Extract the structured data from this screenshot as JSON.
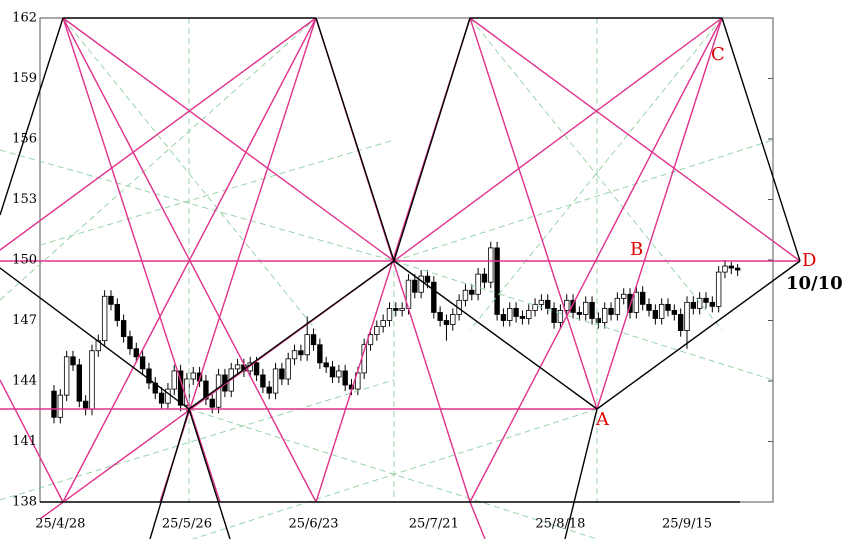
{
  "chart_data": {
    "type": "candlestick",
    "categories": [
      null,
      "25/4/28",
      null,
      null,
      null,
      null,
      null,
      null,
      null,
      null,
      null,
      null,
      null,
      null,
      null,
      null,
      null,
      null,
      null,
      null,
      null,
      "25/5/26",
      null,
      null,
      null,
      null,
      null,
      null,
      null,
      null,
      null,
      null,
      null,
      null,
      null,
      null,
      null,
      null,
      null,
      null,
      null,
      "25/6/23",
      null,
      null,
      null,
      null,
      null,
      null,
      null,
      null,
      null,
      null,
      null,
      null,
      null,
      null,
      null,
      null,
      null,
      null,
      "25/7/21",
      null,
      null,
      null,
      null,
      null,
      null,
      null,
      null,
      null,
      null,
      null,
      null,
      null,
      null,
      null,
      null,
      null,
      null,
      null,
      "25/8/18",
      null,
      null,
      null,
      null,
      null,
      null,
      null,
      null,
      null,
      null,
      null,
      null,
      null,
      null,
      null,
      null,
      null,
      null,
      null,
      "25/9/15",
      null,
      null,
      null,
      null,
      null,
      null,
      null,
      null
    ],
    "values": [
      [
        143.5,
        143.8,
        141.9,
        142.2
      ],
      [
        142.2,
        143.6,
        141.9,
        143.3
      ],
      [
        143.3,
        145.5,
        143.0,
        145.2
      ],
      [
        145.2,
        145.5,
        144.5,
        144.8
      ],
      [
        144.8,
        145.1,
        142.7,
        143.0
      ],
      [
        143.0,
        143.3,
        142.3,
        142.6
      ],
      [
        142.6,
        145.8,
        142.3,
        145.5
      ],
      [
        145.5,
        146.3,
        145.2,
        146.0
      ],
      [
        146.0,
        148.5,
        145.7,
        148.2
      ],
      [
        148.2,
        148.5,
        147.5,
        147.8
      ],
      [
        147.8,
        148.1,
        146.7,
        147.0
      ],
      [
        147.0,
        147.3,
        145.9,
        146.2
      ],
      [
        146.2,
        146.5,
        145.3,
        145.6
      ],
      [
        145.6,
        145.9,
        144.9,
        145.2
      ],
      [
        145.2,
        145.5,
        144.3,
        144.6
      ],
      [
        144.6,
        144.9,
        143.6,
        143.9
      ],
      [
        143.9,
        144.2,
        143.1,
        143.4
      ],
      [
        143.4,
        143.7,
        142.6,
        142.9
      ],
      [
        142.9,
        143.9,
        142.6,
        143.6
      ],
      [
        143.6,
        144.8,
        143.3,
        144.5
      ],
      [
        144.5,
        144.8,
        142.5,
        142.8
      ],
      [
        142.8,
        144.4,
        142.5,
        144.1
      ],
      [
        144.1,
        144.7,
        143.8,
        144.4
      ],
      [
        144.4,
        144.7,
        143.7,
        144.0
      ],
      [
        144.0,
        144.3,
        142.8,
        143.1
      ],
      [
        143.1,
        143.4,
        142.4,
        142.7
      ],
      [
        142.7,
        144.6,
        142.4,
        144.3
      ],
      [
        144.3,
        144.6,
        143.2,
        143.5
      ],
      [
        143.5,
        144.9,
        143.2,
        144.6
      ],
      [
        144.6,
        145.1,
        144.3,
        144.8
      ],
      [
        144.8,
        145.1,
        144.2,
        144.5
      ],
      [
        144.5,
        145.2,
        144.2,
        144.9
      ],
      [
        144.9,
        145.2,
        144.0,
        144.3
      ],
      [
        144.3,
        144.6,
        143.4,
        143.7
      ],
      [
        143.7,
        144.0,
        143.1,
        143.4
      ],
      [
        143.4,
        144.9,
        143.1,
        144.6
      ],
      [
        144.6,
        144.9,
        143.8,
        144.1
      ],
      [
        144.1,
        145.4,
        143.8,
        145.1
      ],
      [
        145.1,
        145.8,
        144.8,
        145.5
      ],
      [
        145.5,
        145.8,
        145.0,
        145.3
      ],
      [
        145.3,
        147.2,
        145.0,
        146.3
      ],
      [
        146.3,
        146.6,
        145.5,
        145.8
      ],
      [
        145.8,
        146.1,
        144.6,
        144.9
      ],
      [
        144.9,
        145.2,
        144.4,
        144.7
      ],
      [
        144.7,
        145.0,
        143.9,
        144.2
      ],
      [
        144.2,
        144.8,
        143.9,
        144.5
      ],
      [
        144.5,
        144.8,
        143.5,
        143.8
      ],
      [
        143.8,
        144.1,
        143.3,
        143.6
      ],
      [
        143.6,
        144.7,
        143.3,
        144.4
      ],
      [
        144.4,
        146.1,
        144.1,
        145.8
      ],
      [
        145.8,
        146.6,
        145.5,
        146.3
      ],
      [
        146.3,
        147.0,
        146.0,
        146.7
      ],
      [
        146.7,
        147.3,
        146.4,
        147.0
      ],
      [
        147.0,
        147.9,
        146.7,
        147.6
      ],
      [
        147.6,
        147.9,
        147.2,
        147.5
      ],
      [
        147.5,
        147.9,
        147.2,
        147.6
      ],
      [
        147.6,
        149.3,
        147.3,
        149.0
      ],
      [
        149.0,
        149.3,
        148.1,
        148.4
      ],
      [
        148.4,
        149.5,
        148.1,
        149.2
      ],
      [
        149.2,
        149.5,
        148.6,
        148.9
      ],
      [
        148.9,
        149.2,
        147.1,
        147.4
      ],
      [
        147.4,
        147.7,
        146.7,
        147.0
      ],
      [
        147.0,
        147.3,
        146.0,
        146.8
      ],
      [
        146.8,
        147.6,
        146.5,
        147.3
      ],
      [
        147.3,
        148.3,
        147.0,
        148.0
      ],
      [
        148.0,
        148.8,
        147.7,
        148.5
      ],
      [
        148.5,
        148.8,
        148.0,
        148.3
      ],
      [
        148.3,
        149.6,
        148.0,
        149.3
      ],
      [
        149.3,
        149.6,
        148.6,
        148.9
      ],
      [
        148.9,
        150.9,
        148.6,
        150.6
      ],
      [
        150.6,
        150.9,
        147.0,
        147.3
      ],
      [
        147.3,
        147.6,
        146.7,
        147.0
      ],
      [
        147.0,
        147.9,
        146.7,
        147.6
      ],
      [
        147.6,
        147.9,
        146.9,
        147.2
      ],
      [
        147.2,
        147.5,
        146.8,
        147.1
      ],
      [
        147.1,
        147.8,
        146.8,
        147.5
      ],
      [
        147.5,
        148.1,
        147.2,
        147.8
      ],
      [
        147.8,
        148.3,
        147.5,
        148.0
      ],
      [
        148.0,
        148.3,
        147.3,
        147.6
      ],
      [
        147.6,
        147.9,
        146.6,
        146.9
      ],
      [
        146.9,
        147.8,
        146.6,
        147.5
      ],
      [
        147.5,
        148.3,
        147.2,
        148.0
      ],
      [
        148.0,
        148.3,
        147.1,
        147.4
      ],
      [
        147.4,
        147.7,
        147.0,
        147.3
      ],
      [
        147.3,
        148.2,
        147.0,
        147.9
      ],
      [
        147.9,
        148.2,
        146.8,
        147.1
      ],
      [
        147.1,
        147.4,
        146.6,
        146.9
      ],
      [
        146.9,
        147.9,
        146.6,
        147.6
      ],
      [
        147.6,
        147.9,
        147.0,
        147.3
      ],
      [
        147.3,
        148.4,
        147.0,
        148.1
      ],
      [
        148.1,
        148.6,
        147.8,
        148.3
      ],
      [
        148.3,
        148.6,
        147.1,
        147.4
      ],
      [
        147.4,
        148.7,
        147.1,
        148.4
      ],
      [
        148.4,
        148.7,
        147.5,
        147.8
      ],
      [
        147.8,
        148.1,
        147.2,
        147.5
      ],
      [
        147.5,
        147.8,
        146.8,
        147.1
      ],
      [
        147.1,
        148.1,
        146.8,
        147.8
      ],
      [
        147.8,
        148.1,
        147.2,
        147.5
      ],
      [
        147.5,
        147.8,
        147.0,
        147.3
      ],
      [
        147.3,
        147.6,
        146.2,
        146.5
      ],
      [
        146.5,
        148.2,
        145.6,
        147.9
      ],
      [
        147.9,
        148.2,
        147.3,
        147.6
      ],
      [
        147.6,
        148.4,
        147.3,
        148.1
      ],
      [
        148.1,
        148.4,
        147.6,
        147.9
      ],
      [
        147.9,
        148.2,
        147.4,
        147.7
      ],
      [
        147.7,
        149.7,
        147.4,
        149.4
      ],
      [
        149.4,
        150.0,
        149.1,
        149.7
      ],
      [
        149.7,
        149.9,
        149.3,
        149.6
      ],
      [
        149.6,
        149.8,
        149.2,
        149.5
      ]
    ],
    "up_color": "#ffffff",
    "down_color": "#000000",
    "ylim": [
      138,
      162
    ],
    "yticks": [
      138,
      141,
      144,
      147,
      150,
      153,
      156,
      159,
      162
    ],
    "grid": false,
    "annotations": [
      "A",
      "B",
      "C",
      "D",
      "10/10"
    ]
  }
}
